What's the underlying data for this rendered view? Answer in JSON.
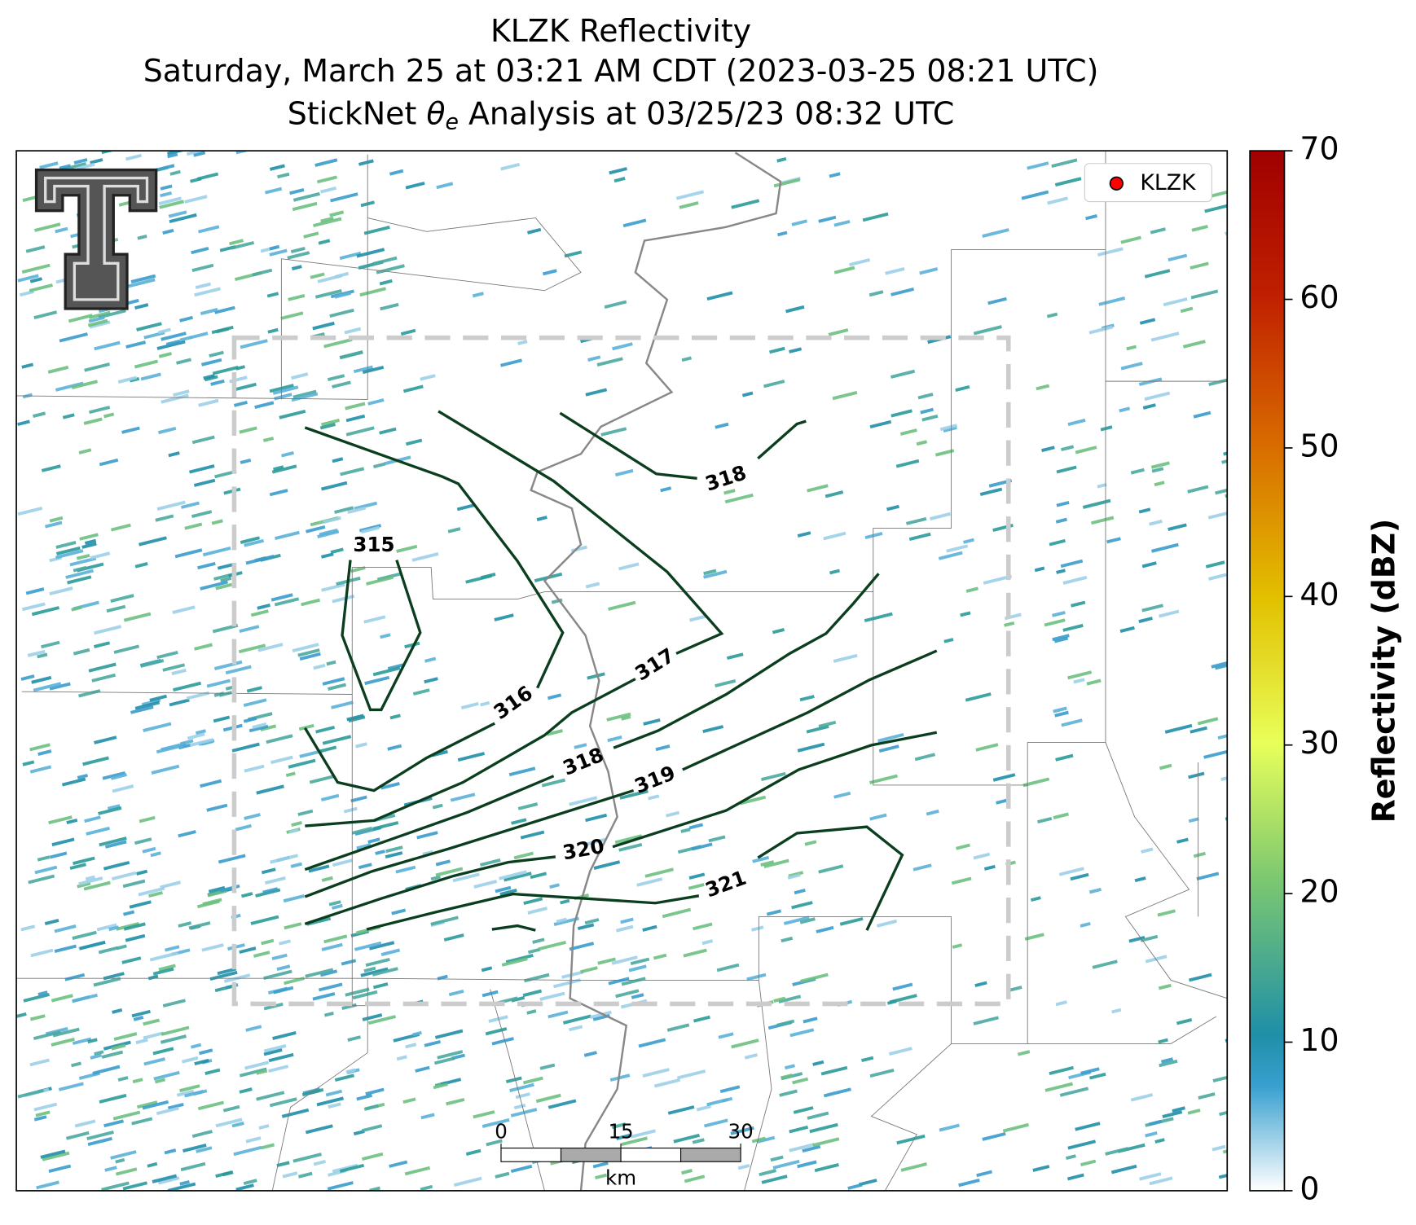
{
  "title": {
    "line1": "KLZK Reflectivity",
    "line2": "Saturday, March 25 at 03:21 AM CDT (2023-03-25 08:21 UTC)",
    "line3": {
      "before": "StickNet ",
      "symbol": "θ",
      "subscript": "e",
      "after": " Analysis at 03/25/23 08:32 UTC"
    }
  },
  "legend": {
    "label": "KLZK",
    "color": "#ff0000"
  },
  "contour_labels": [
    318,
    315,
    316,
    317,
    318,
    319,
    320,
    321
  ],
  "colorbar": {
    "label": "Reflectivity (dBZ)",
    "clim": [
      0,
      70
    ],
    "ticks": [
      0,
      10,
      20,
      30,
      40,
      50,
      60,
      70
    ]
  },
  "scale_bar": {
    "ticks": [
      0,
      15,
      30
    ],
    "unit": "km"
  }
}
